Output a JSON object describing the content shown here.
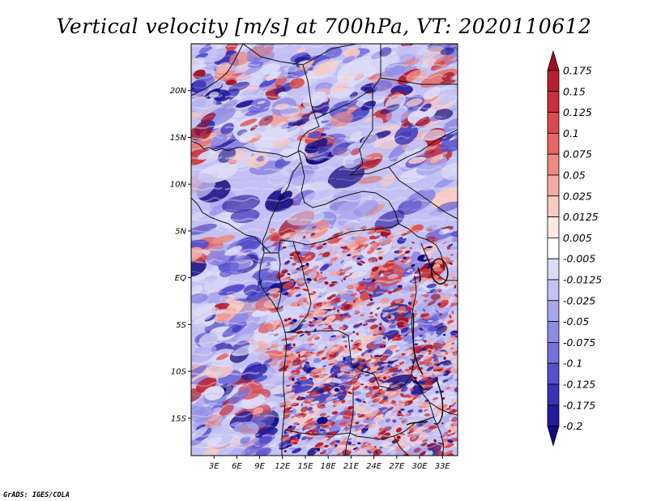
{
  "title": "Vertical velocity [m/s] at 700hPa, VT: 2020110612",
  "footer": "GrADS: IGES/COLA",
  "lat_labels": [
    "20N",
    "15N",
    "10N",
    "5N",
    "EQ",
    "5S",
    "10S",
    "15S"
  ],
  "lon_labels": [
    "3E",
    "6E",
    "9E",
    "12E",
    "15E",
    "18E",
    "21E",
    "24E",
    "27E",
    "30E",
    "33E"
  ],
  "colorbar": {
    "labels": [
      "0.175",
      "0.15",
      "0.125",
      "0.1",
      "0.075",
      "0.05",
      "0.025",
      "0.0125",
      "0.005",
      "-0.005",
      "-0.0125",
      "-0.025",
      "-0.05",
      "-0.075",
      "-0.1",
      "-0.125",
      "-0.175",
      "-0.2"
    ],
    "colors": [
      "#a01020",
      "#b82030",
      "#cc3038",
      "#dc4a48",
      "#e66860",
      "#ee8a80",
      "#f4aaa2",
      "#f8cbc4",
      "#fce8e4",
      "#ffffff",
      "#dcdcf8",
      "#c4c2f4",
      "#aaa6ee",
      "#908ae6",
      "#7470dc",
      "#5650cc",
      "#3a32b6",
      "#221a9c",
      "#120a80"
    ]
  },
  "chart_data": {
    "type": "heatmap",
    "title": "Vertical velocity [m/s] at 700hPa, VT: 2020110612",
    "variable": "Vertical velocity",
    "units": "m/s",
    "level": "700hPa",
    "valid_time": "2020110612",
    "lon_range_deg": [
      0,
      35
    ],
    "lat_range_deg": [
      -19,
      25
    ],
    "levels": [
      -0.2,
      -0.175,
      -0.125,
      -0.1,
      -0.075,
      -0.05,
      -0.025,
      -0.0125,
      -0.005,
      0.005,
      0.0125,
      0.025,
      0.05,
      0.075,
      0.1,
      0.125,
      0.15,
      0.175
    ]
  }
}
